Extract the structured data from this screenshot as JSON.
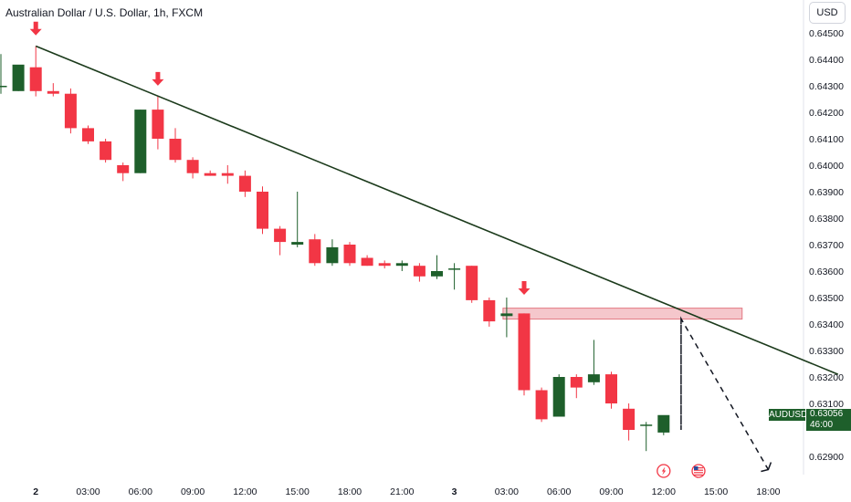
{
  "header": {
    "title": "Australian Dollar / U.S. Dollar, 1h, FXCM",
    "currency": "USD"
  },
  "price_tag": {
    "symbol": "AUDUSD",
    "price": "0.63056",
    "countdown": "46:00"
  },
  "colors": {
    "up": "#1e5f2b",
    "down": "#f23645",
    "trendline": "#1b3a1b",
    "zone_fill": "#f5c2c7",
    "zone_stroke": "#e06a76"
  },
  "chart_data": {
    "type": "candlestick",
    "title": "Australian Dollar / U.S. Dollar, 1h, FXCM",
    "ylim": [
      0.6285,
      0.6452
    ],
    "yticks": [
      "0.64500",
      "0.64400",
      "0.64300",
      "0.64200",
      "0.64100",
      "0.64000",
      "0.63900",
      "0.63800",
      "0.63700",
      "0.63600",
      "0.63500",
      "0.63400",
      "0.63300",
      "0.63200",
      "0.63100",
      "0.62900"
    ],
    "xticks": [
      {
        "label": "2",
        "bar": 2
      },
      {
        "label": "03:00",
        "bar": 5
      },
      {
        "label": "06:00",
        "bar": 8
      },
      {
        "label": "09:00",
        "bar": 11
      },
      {
        "label": "12:00",
        "bar": 14
      },
      {
        "label": "15:00",
        "bar": 17
      },
      {
        "label": "18:00",
        "bar": 20
      },
      {
        "label": "21:00",
        "bar": 23
      },
      {
        "label": "3",
        "bar": 26
      },
      {
        "label": "03:00",
        "bar": 29
      },
      {
        "label": "06:00",
        "bar": 32
      },
      {
        "label": "09:00",
        "bar": 35
      },
      {
        "label": "12:00",
        "bar": 38
      },
      {
        "label": "15:00",
        "bar": 41
      },
      {
        "label": "18:00",
        "bar": 44
      }
    ],
    "candles": [
      {
        "o": 0.643,
        "h": 0.6442,
        "l": 0.6427,
        "c": 0.643
      },
      {
        "o": 0.6428,
        "h": 0.6437,
        "l": 0.6428,
        "c": 0.6438
      },
      {
        "o": 0.6437,
        "h": 0.6445,
        "l": 0.6426,
        "c": 0.6428
      },
      {
        "o": 0.6428,
        "h": 0.6431,
        "l": 0.6426,
        "c": 0.6427
      },
      {
        "o": 0.6427,
        "h": 0.6429,
        "l": 0.6412,
        "c": 0.6414
      },
      {
        "o": 0.6414,
        "h": 0.6415,
        "l": 0.6408,
        "c": 0.6409
      },
      {
        "o": 0.6409,
        "h": 0.641,
        "l": 0.6401,
        "c": 0.6402
      },
      {
        "o": 0.64,
        "h": 0.6401,
        "l": 0.6394,
        "c": 0.6397
      },
      {
        "o": 0.6397,
        "h": 0.6421,
        "l": 0.6397,
        "c": 0.6421
      },
      {
        "o": 0.6421,
        "h": 0.6426,
        "l": 0.6406,
        "c": 0.641
      },
      {
        "o": 0.641,
        "h": 0.6414,
        "l": 0.6401,
        "c": 0.6402
      },
      {
        "o": 0.6402,
        "h": 0.6403,
        "l": 0.6395,
        "c": 0.6397
      },
      {
        "o": 0.6397,
        "h": 0.6398,
        "l": 0.6396,
        "c": 0.6396
      },
      {
        "o": 0.6397,
        "h": 0.64,
        "l": 0.6393,
        "c": 0.6396
      },
      {
        "o": 0.6396,
        "h": 0.6398,
        "l": 0.6388,
        "c": 0.639
      },
      {
        "o": 0.639,
        "h": 0.6392,
        "l": 0.6374,
        "c": 0.6376
      },
      {
        "o": 0.6376,
        "h": 0.6377,
        "l": 0.6366,
        "c": 0.6371
      },
      {
        "o": 0.637,
        "h": 0.639,
        "l": 0.6369,
        "c": 0.6371
      },
      {
        "o": 0.6372,
        "h": 0.6374,
        "l": 0.6362,
        "c": 0.6363
      },
      {
        "o": 0.6363,
        "h": 0.6372,
        "l": 0.6362,
        "c": 0.6369
      },
      {
        "o": 0.637,
        "h": 0.6371,
        "l": 0.6362,
        "c": 0.6363
      },
      {
        "o": 0.6365,
        "h": 0.6366,
        "l": 0.6362,
        "c": 0.6362
      },
      {
        "o": 0.6363,
        "h": 0.6364,
        "l": 0.6361,
        "c": 0.6362
      },
      {
        "o": 0.6362,
        "h": 0.6364,
        "l": 0.636,
        "c": 0.6363
      },
      {
        "o": 0.6362,
        "h": 0.6363,
        "l": 0.6356,
        "c": 0.6358
      },
      {
        "o": 0.6358,
        "h": 0.6366,
        "l": 0.6357,
        "c": 0.636
      },
      {
        "o": 0.6361,
        "h": 0.6363,
        "l": 0.6353,
        "c": 0.6361
      },
      {
        "o": 0.6362,
        "h": 0.6362,
        "l": 0.6348,
        "c": 0.6349
      },
      {
        "o": 0.6349,
        "h": 0.635,
        "l": 0.6339,
        "c": 0.6341
      },
      {
        "o": 0.6343,
        "h": 0.635,
        "l": 0.6335,
        "c": 0.6344
      },
      {
        "o": 0.6344,
        "h": 0.6344,
        "l": 0.6313,
        "c": 0.6315
      },
      {
        "o": 0.6315,
        "h": 0.6316,
        "l": 0.6303,
        "c": 0.6304
      },
      {
        "o": 0.6305,
        "h": 0.6321,
        "l": 0.6305,
        "c": 0.632
      },
      {
        "o": 0.632,
        "h": 0.6321,
        "l": 0.6312,
        "c": 0.6316
      },
      {
        "o": 0.6318,
        "h": 0.6334,
        "l": 0.6317,
        "c": 0.6321
      },
      {
        "o": 0.6321,
        "h": 0.6322,
        "l": 0.6308,
        "c": 0.631
      },
      {
        "o": 0.6308,
        "h": 0.631,
        "l": 0.6296,
        "c": 0.63
      },
      {
        "o": 0.6302,
        "h": 0.6303,
        "l": 0.6292,
        "c": 0.6302
      },
      {
        "o": 0.6299,
        "h": 0.6305,
        "l": 0.6298,
        "c": 0.63056
      }
    ],
    "trendline": {
      "from": {
        "bar": 2,
        "price": 0.6445
      },
      "to": {
        "bar": 48,
        "price": 0.6321
      }
    },
    "resistance_zone": {
      "from_bar": 29,
      "to_bar": 42.5,
      "top": 0.6346,
      "bottom": 0.6343
    },
    "projection": [
      {
        "bar": 39,
        "price": 0.6342
      },
      {
        "bar": 39,
        "price": 0.63
      },
      {
        "bar": 39,
        "price": 0.6342
      },
      {
        "bar": 44,
        "price": 0.6285
      }
    ],
    "arrows": [
      {
        "bar": 2,
        "price": 0.6448
      },
      {
        "bar": 9,
        "price": 0.6429
      },
      {
        "bar": 30,
        "price": 0.635
      }
    ],
    "event_icons": [
      {
        "bar": 38,
        "type": "lightning-icon"
      },
      {
        "bar": 40,
        "type": "us-flag-icon"
      }
    ]
  }
}
